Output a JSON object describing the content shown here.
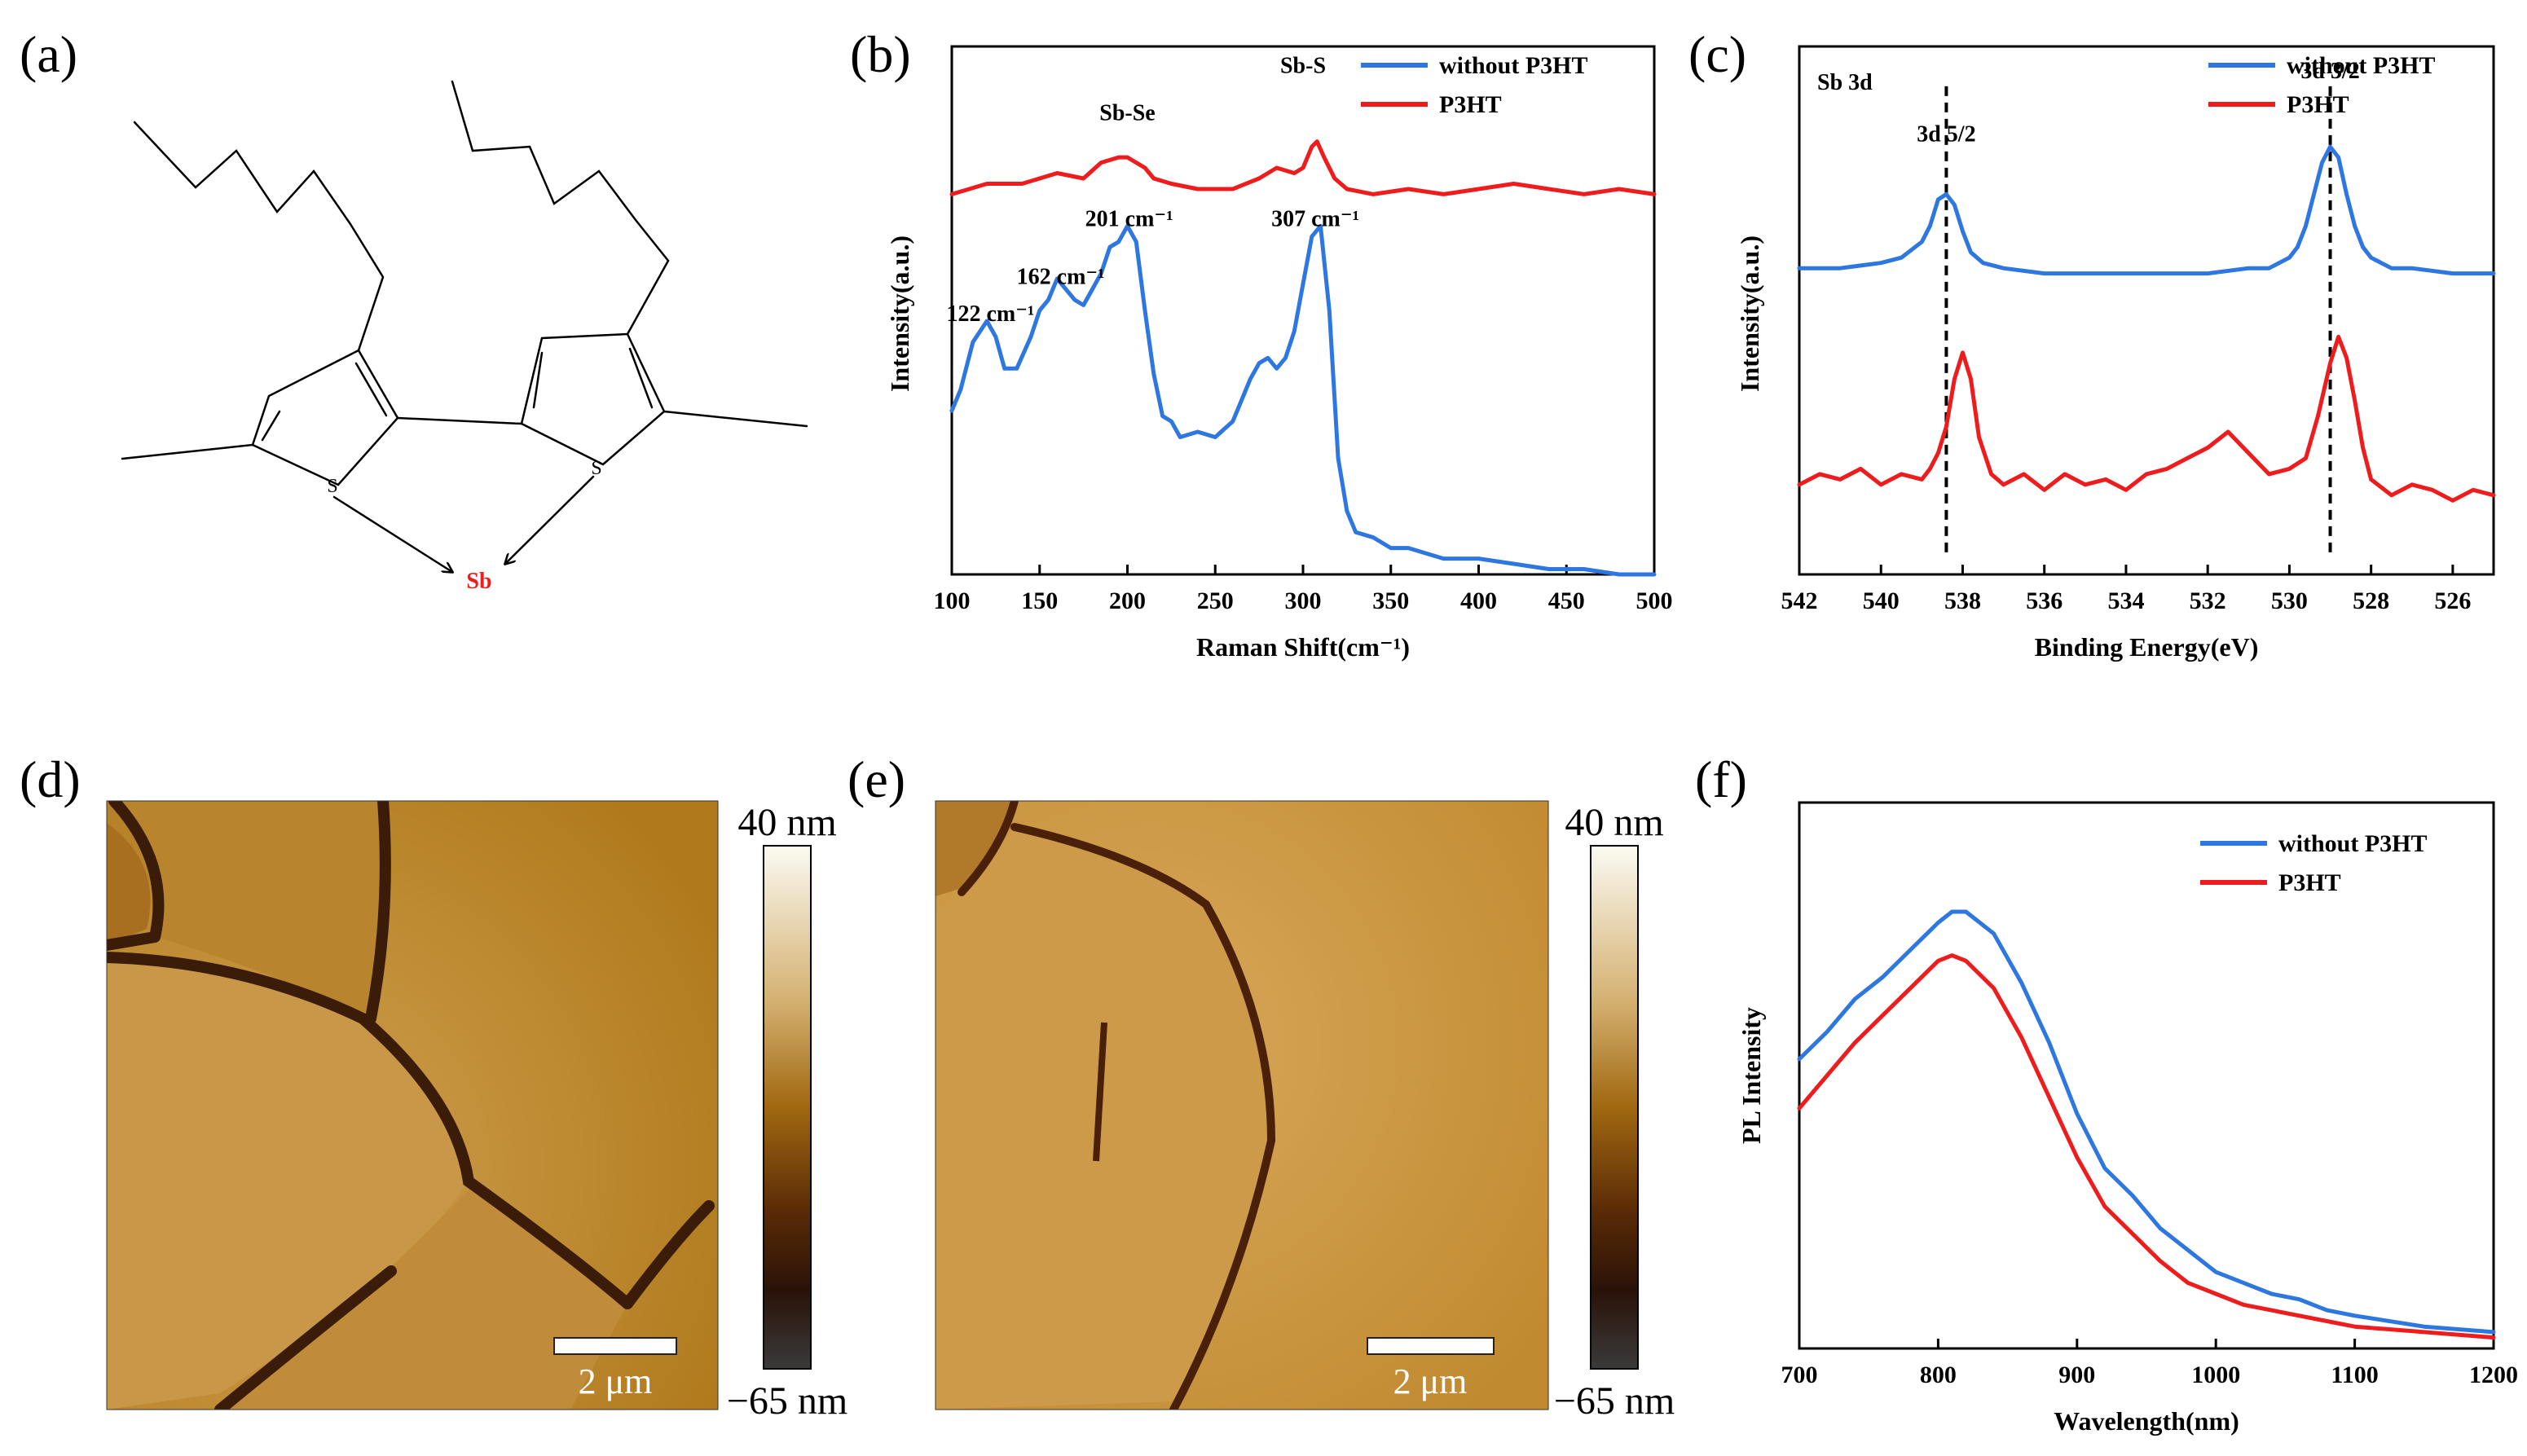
{
  "colors": {
    "blue": "#2f77e0",
    "red": "#ee1c1c",
    "sb_label": "#ee1c1c",
    "afm_dark": "#3a1c08",
    "afm_mid": "#a86a1c",
    "afm_light": "#d8a858"
  },
  "panels": {
    "a": {
      "label": "(a)",
      "atoms": {
        "s1": "S",
        "s2": "S",
        "sb": "Sb"
      }
    },
    "d": {
      "label": "(d)",
      "scale_bar": "2 μm",
      "colorbar_max": "40 nm",
      "colorbar_min": "−65 nm"
    },
    "e": {
      "label": "(e)",
      "scale_bar": "2 μm",
      "colorbar_max": "40 nm",
      "colorbar_min": "−65 nm"
    }
  },
  "chart_data": [
    {
      "id": "b",
      "panel_label": "(b)",
      "type": "line",
      "xlabel": "Raman Shift(cm⁻¹)",
      "ylabel": "Intensity(a.u.)",
      "xlim": [
        100,
        500
      ],
      "ylim": [
        0,
        1
      ],
      "xticks": [
        100,
        150,
        200,
        250,
        300,
        350,
        400,
        450,
        500
      ],
      "legend": [
        "without P3HT",
        "P3HT"
      ],
      "annotations": [
        {
          "text": "Sb-Se",
          "x": 200,
          "y": 0.86
        },
        {
          "text": "Sb-S",
          "x": 300,
          "y": 0.95
        },
        {
          "text": "201 cm⁻¹",
          "x": 201,
          "y": 0.66
        },
        {
          "text": "307 cm⁻¹",
          "x": 307,
          "y": 0.66
        },
        {
          "text": "162 cm⁻¹",
          "x": 162,
          "y": 0.55
        },
        {
          "text": "122 cm⁻¹",
          "x": 122,
          "y": 0.48
        }
      ],
      "series": [
        {
          "name": "without P3HT",
          "color": "blue",
          "x": [
            100,
            105,
            112,
            120,
            125,
            130,
            137,
            145,
            150,
            155,
            160,
            165,
            170,
            175,
            180,
            185,
            190,
            195,
            200,
            205,
            210,
            215,
            220,
            225,
            230,
            240,
            250,
            260,
            265,
            270,
            275,
            280,
            285,
            290,
            295,
            300,
            305,
            310,
            315,
            320,
            325,
            330,
            340,
            350,
            360,
            370,
            380,
            400,
            420,
            440,
            460,
            480,
            500
          ],
          "y": [
            0.31,
            0.35,
            0.44,
            0.48,
            0.45,
            0.39,
            0.39,
            0.45,
            0.5,
            0.52,
            0.56,
            0.54,
            0.52,
            0.51,
            0.54,
            0.57,
            0.62,
            0.63,
            0.66,
            0.63,
            0.5,
            0.38,
            0.3,
            0.29,
            0.26,
            0.27,
            0.26,
            0.29,
            0.33,
            0.37,
            0.4,
            0.41,
            0.39,
            0.41,
            0.46,
            0.55,
            0.64,
            0.66,
            0.5,
            0.22,
            0.12,
            0.08,
            0.07,
            0.05,
            0.05,
            0.04,
            0.03,
            0.03,
            0.02,
            0.01,
            0.01,
            0.0,
            0.0
          ]
        },
        {
          "name": "P3HT",
          "color": "red",
          "x": [
            100,
            120,
            140,
            160,
            175,
            185,
            195,
            200,
            205,
            210,
            215,
            225,
            240,
            260,
            275,
            285,
            295,
            300,
            305,
            308,
            312,
            318,
            325,
            340,
            360,
            380,
            400,
            420,
            440,
            460,
            480,
            500
          ],
          "y": [
            0.72,
            0.74,
            0.74,
            0.76,
            0.75,
            0.78,
            0.79,
            0.79,
            0.78,
            0.77,
            0.75,
            0.74,
            0.73,
            0.73,
            0.75,
            0.77,
            0.76,
            0.77,
            0.81,
            0.82,
            0.79,
            0.75,
            0.73,
            0.72,
            0.73,
            0.72,
            0.73,
            0.74,
            0.73,
            0.72,
            0.73,
            0.72
          ]
        }
      ]
    },
    {
      "id": "c",
      "panel_label": "(c)",
      "type": "line",
      "title": "Sb 3d",
      "xlabel": "Binding Energy(eV)",
      "ylabel": "Intensity(a.u.)",
      "xlim": [
        542,
        525
      ],
      "ylim": [
        0,
        1
      ],
      "xticks": [
        542,
        540,
        538,
        536,
        534,
        532,
        530,
        528,
        526
      ],
      "legend": [
        "without P3HT",
        "P3HT"
      ],
      "annotations": [
        {
          "text": "3d 5/2",
          "x": 538.4,
          "y": 0.82
        },
        {
          "text": "3d 3/2",
          "x": 529.0,
          "y": 0.94
        }
      ],
      "vlines": [
        538.4,
        529.0
      ],
      "series": [
        {
          "name": "without P3HT",
          "color": "blue",
          "x": [
            542,
            541,
            540,
            539.5,
            539,
            538.8,
            538.6,
            538.4,
            538.2,
            538,
            537.8,
            537.5,
            537,
            536,
            535,
            534,
            533,
            532,
            531,
            530.5,
            530,
            529.8,
            529.6,
            529.4,
            529.2,
            529.0,
            528.8,
            528.6,
            528.4,
            528.2,
            528,
            527.5,
            527,
            526,
            525
          ],
          "y": [
            0.58,
            0.58,
            0.59,
            0.6,
            0.63,
            0.66,
            0.71,
            0.72,
            0.7,
            0.65,
            0.61,
            0.59,
            0.58,
            0.57,
            0.57,
            0.57,
            0.57,
            0.57,
            0.58,
            0.58,
            0.6,
            0.62,
            0.66,
            0.72,
            0.78,
            0.81,
            0.79,
            0.72,
            0.66,
            0.62,
            0.6,
            0.58,
            0.58,
            0.57,
            0.57
          ]
        },
        {
          "name": "P3HT",
          "color": "red",
          "x": [
            542,
            541.5,
            541,
            540.5,
            540,
            539.5,
            539,
            538.8,
            538.6,
            538.4,
            538.2,
            538.0,
            537.8,
            537.6,
            537.3,
            537,
            536.5,
            536,
            535.5,
            535,
            534.5,
            534,
            533.5,
            533,
            532.5,
            532,
            531.5,
            531,
            530.5,
            530,
            529.6,
            529.3,
            529.0,
            528.8,
            528.6,
            528.4,
            528.2,
            528.0,
            527.5,
            527,
            526.5,
            526,
            525.5,
            525
          ],
          "y": [
            0.17,
            0.19,
            0.18,
            0.2,
            0.17,
            0.19,
            0.18,
            0.2,
            0.23,
            0.28,
            0.37,
            0.42,
            0.37,
            0.26,
            0.19,
            0.17,
            0.19,
            0.16,
            0.19,
            0.17,
            0.18,
            0.16,
            0.19,
            0.2,
            0.22,
            0.24,
            0.27,
            0.23,
            0.19,
            0.2,
            0.22,
            0.3,
            0.4,
            0.45,
            0.41,
            0.33,
            0.24,
            0.18,
            0.15,
            0.17,
            0.16,
            0.14,
            0.16,
            0.15
          ]
        }
      ]
    },
    {
      "id": "f",
      "panel_label": "(f)",
      "type": "line",
      "xlabel": "Wavelength(nm)",
      "ylabel": "PL Intensity",
      "xlim": [
        700,
        1200
      ],
      "ylim": [
        0,
        1
      ],
      "xticks": [
        700,
        800,
        900,
        1000,
        1100,
        1200
      ],
      "legend": [
        "without P3HT",
        "P3HT"
      ],
      "series": [
        {
          "name": "without P3HT",
          "color": "blue",
          "x": [
            700,
            720,
            740,
            760,
            780,
            800,
            810,
            820,
            840,
            860,
            880,
            900,
            920,
            940,
            960,
            980,
            1000,
            1020,
            1040,
            1060,
            1080,
            1100,
            1150,
            1200
          ],
          "y": [
            0.53,
            0.58,
            0.64,
            0.68,
            0.73,
            0.78,
            0.8,
            0.8,
            0.76,
            0.67,
            0.56,
            0.43,
            0.33,
            0.28,
            0.22,
            0.18,
            0.14,
            0.12,
            0.1,
            0.09,
            0.07,
            0.06,
            0.04,
            0.03
          ]
        },
        {
          "name": "P3HT",
          "color": "red",
          "x": [
            700,
            720,
            740,
            760,
            780,
            800,
            810,
            820,
            840,
            860,
            880,
            900,
            920,
            940,
            960,
            980,
            1000,
            1020,
            1040,
            1060,
            1080,
            1100,
            1150,
            1200
          ],
          "y": [
            0.44,
            0.5,
            0.56,
            0.61,
            0.66,
            0.71,
            0.72,
            0.71,
            0.66,
            0.57,
            0.46,
            0.35,
            0.26,
            0.21,
            0.16,
            0.12,
            0.1,
            0.08,
            0.07,
            0.06,
            0.05,
            0.04,
            0.03,
            0.02
          ]
        }
      ]
    }
  ]
}
